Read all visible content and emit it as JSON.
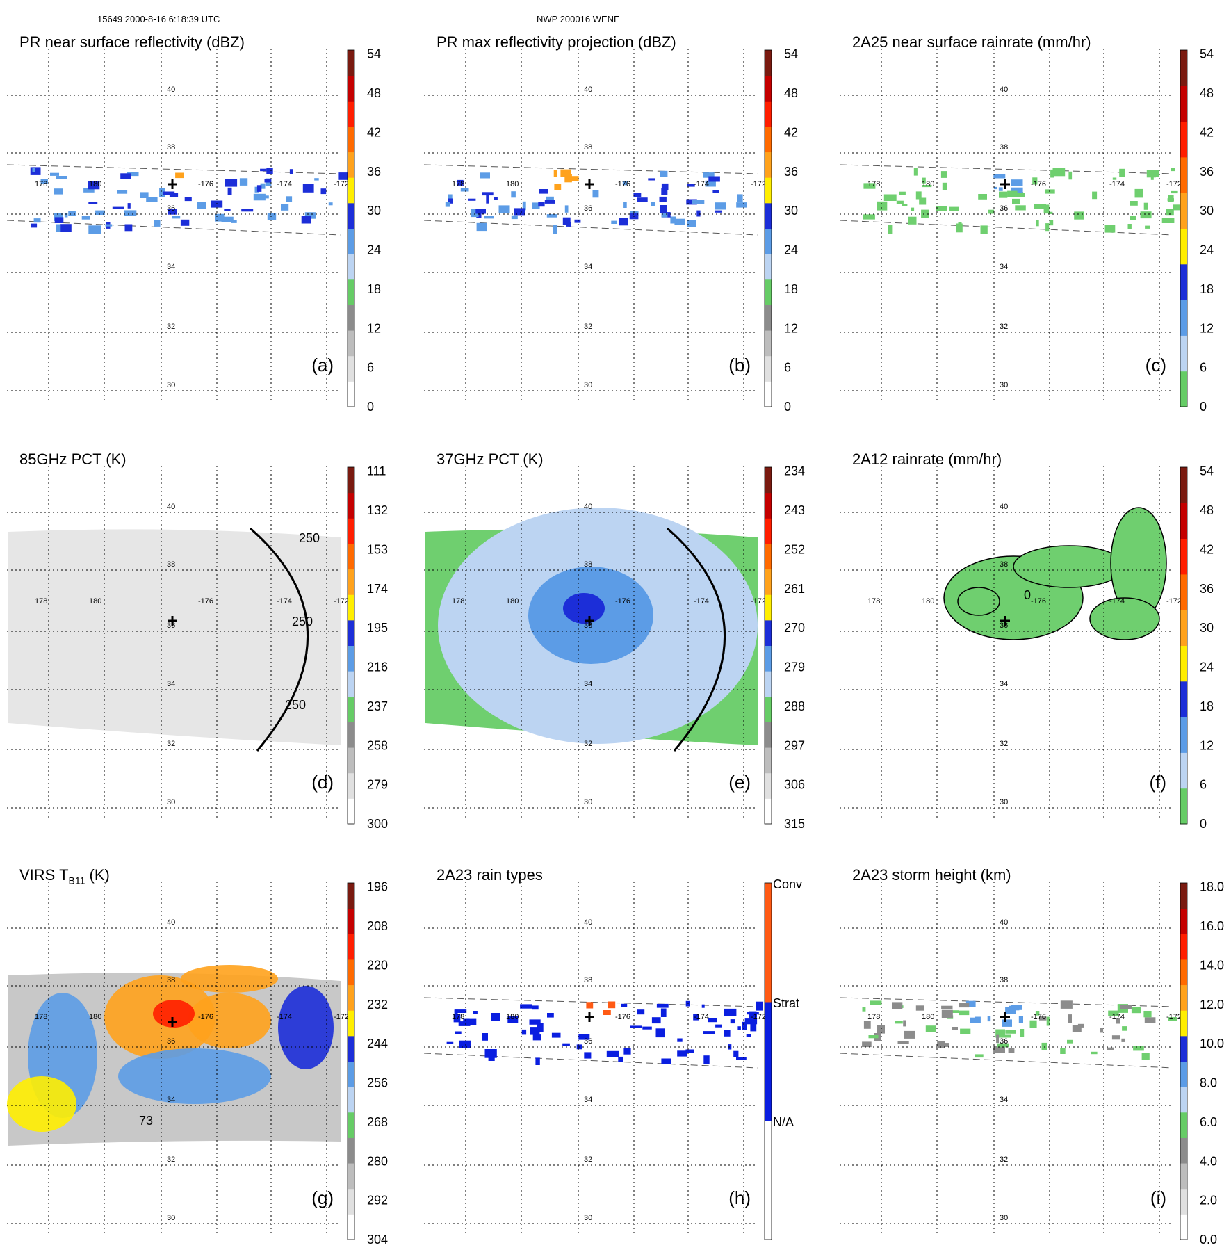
{
  "header": {
    "left": "15649 2000-8-16 6:18:39 UTC",
    "center": "NWP 200016 WENE"
  },
  "map": {
    "lat_labels": [
      "40",
      "38",
      "36",
      "34",
      "32",
      "30"
    ],
    "lon_labels": [
      "178",
      "180",
      "-176",
      "-174",
      "-172"
    ],
    "storm_center_marker": "plus-icon"
  },
  "chart_data": [
    {
      "id": "a",
      "type": "heatmap",
      "title": "PR near surface reflectivity (dBZ)",
      "panel_label": "(a)",
      "colorbar_ticks": [
        "0",
        "6",
        "12",
        "18",
        "24",
        "30",
        "36",
        "42",
        "48",
        "54"
      ],
      "colors": [
        "#ffffff",
        "#e0e0e0",
        "#bdbdbd",
        "#8c8c8c",
        "#66cc66",
        "#bcd4f2",
        "#5c9ce6",
        "#1c2ed8",
        "#ffee00",
        "#ffa21c",
        "#ff6a00",
        "#ff1e00",
        "#c40000",
        "#7a1a10"
      ],
      "swath": "pr"
    },
    {
      "id": "b",
      "type": "heatmap",
      "title": "PR max reflectivity projection (dBZ)",
      "panel_label": "(b)",
      "colorbar_ticks": [
        "0",
        "6",
        "12",
        "18",
        "24",
        "30",
        "36",
        "42",
        "48",
        "54"
      ],
      "colors": [
        "#ffffff",
        "#e0e0e0",
        "#bdbdbd",
        "#8c8c8c",
        "#66cc66",
        "#bcd4f2",
        "#5c9ce6",
        "#1c2ed8",
        "#ffee00",
        "#ffa21c",
        "#ff6a00",
        "#ff1e00",
        "#c40000",
        "#7a1a10"
      ],
      "swath": "pr"
    },
    {
      "id": "c",
      "type": "heatmap",
      "title": "2A25 near surface rainrate (mm/hr)",
      "panel_label": "(c)",
      "colorbar_ticks": [
        "0",
        "6",
        "12",
        "18",
        "24",
        "30",
        "36",
        "42",
        "48",
        "54"
      ],
      "colors": [
        "#66cc66",
        "#bcd4f2",
        "#5c9ce6",
        "#1c2ed8",
        "#ffee00",
        "#ffa21c",
        "#ff6a00",
        "#ff1e00",
        "#c40000",
        "#7a1a10"
      ],
      "swath": "pr"
    },
    {
      "id": "d",
      "type": "heatmap",
      "title": "85GHz PCT (K)",
      "panel_label": "(d)",
      "colorbar_ticks": [
        "300",
        "279",
        "258",
        "237",
        "216",
        "195",
        "174",
        "153",
        "132",
        "111"
      ],
      "colors": [
        "#ffffff",
        "#e0e0e0",
        "#bdbdbd",
        "#8c8c8c",
        "#66cc66",
        "#bcd4f2",
        "#5c9ce6",
        "#1c2ed8",
        "#ffee00",
        "#ffa21c",
        "#ff6a00",
        "#ff1e00",
        "#c40000",
        "#7a1a10"
      ],
      "contour_labels": [
        "250",
        "250",
        "250"
      ],
      "swath": "tmi"
    },
    {
      "id": "e",
      "type": "heatmap",
      "title": "37GHz PCT (K)",
      "panel_label": "(e)",
      "colorbar_ticks": [
        "315",
        "306",
        "297",
        "288",
        "279",
        "270",
        "261",
        "252",
        "243",
        "234"
      ],
      "colors": [
        "#ffffff",
        "#e0e0e0",
        "#bdbdbd",
        "#8c8c8c",
        "#66cc66",
        "#bcd4f2",
        "#5c9ce6",
        "#1c2ed8",
        "#ffee00",
        "#ffa21c",
        "#ff6a00",
        "#ff1e00",
        "#c40000",
        "#7a1a10"
      ],
      "swath": "tmi"
    },
    {
      "id": "f",
      "type": "heatmap",
      "title": "2A12 rainrate (mm/hr)",
      "panel_label": "(f)",
      "colorbar_ticks": [
        "0",
        "6",
        "12",
        "18",
        "24",
        "30",
        "36",
        "42",
        "48",
        "54"
      ],
      "colors": [
        "#66cc66",
        "#bcd4f2",
        "#5c9ce6",
        "#1c2ed8",
        "#ffee00",
        "#ffa21c",
        "#ff6a00",
        "#ff1e00",
        "#c40000",
        "#7a1a10"
      ],
      "contour_labels": [
        "0"
      ],
      "swath": "tmi"
    },
    {
      "id": "g",
      "type": "heatmap",
      "title": "VIRS T",
      "title_sub": "B11",
      "title_unit": " (K)",
      "panel_label": "(g)",
      "colorbar_ticks": [
        "304",
        "292",
        "280",
        "268",
        "256",
        "244",
        "232",
        "220",
        "208",
        "196"
      ],
      "colors": [
        "#ffffff",
        "#e0e0e0",
        "#bdbdbd",
        "#8c8c8c",
        "#66cc66",
        "#bcd4f2",
        "#5c9ce6",
        "#1c2ed8",
        "#ffee00",
        "#ffa21c",
        "#ff6a00",
        "#ff1e00",
        "#c40000",
        "#7a1a10"
      ],
      "contour_labels": [
        "73"
      ],
      "swath": "virs"
    },
    {
      "id": "h",
      "type": "heatmap",
      "title": "2A23 rain types",
      "panel_label": "(h)",
      "categories": [
        "N/A",
        "Strat",
        "Conv"
      ],
      "colors": [
        "#ffffff",
        "#0a1ee0",
        "#ff5a14"
      ],
      "swath": "pr"
    },
    {
      "id": "i",
      "type": "heatmap",
      "title": "2A23 storm height (km)",
      "panel_label": "(i)",
      "colorbar_ticks": [
        "0.0",
        "2.0",
        "4.0",
        "6.0",
        "8.0",
        "10.0",
        "12.0",
        "14.0",
        "16.0",
        "18.0"
      ],
      "colors": [
        "#ffffff",
        "#e0e0e0",
        "#bdbdbd",
        "#8c8c8c",
        "#66cc66",
        "#bcd4f2",
        "#5c9ce6",
        "#1c2ed8",
        "#ffee00",
        "#ffa21c",
        "#ff6a00",
        "#ff1e00",
        "#c40000",
        "#7a1a10"
      ],
      "swath": "pr"
    }
  ]
}
